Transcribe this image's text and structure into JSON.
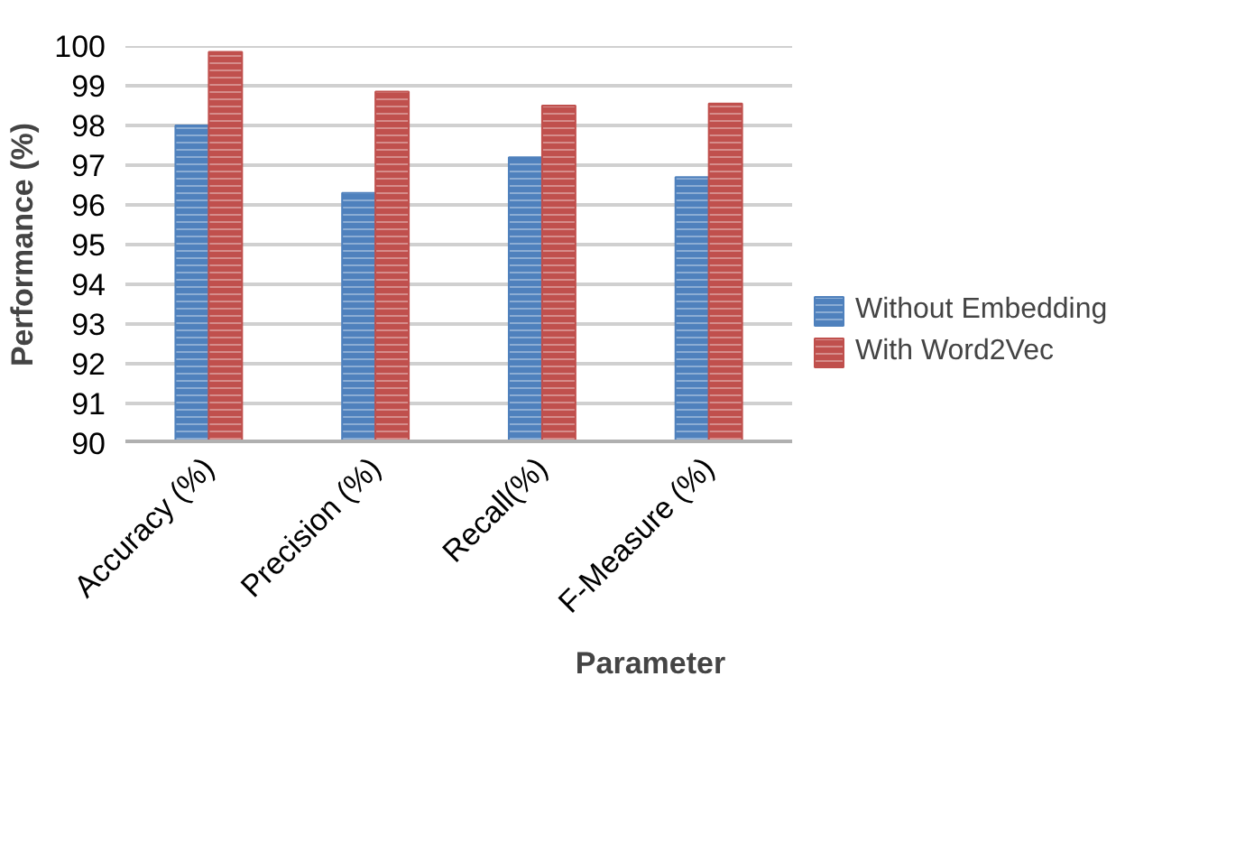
{
  "chart_data": {
    "type": "bar",
    "xlabel": "Parameter",
    "ylabel": "Performance (%)",
    "categories": [
      "Accuracy (%)",
      "Precision (%)",
      "Recall(%)",
      "F-Measure (%)"
    ],
    "series": [
      {
        "name": "Without Embedding",
        "color": "#4f81bd",
        "values": [
          98.0,
          96.3,
          97.2,
          96.7
        ]
      },
      {
        "name": "With Word2Vec",
        "color": "#c0504d",
        "values": [
          99.85,
          98.85,
          98.5,
          98.55
        ]
      }
    ],
    "ylim": [
      90,
      100
    ],
    "yticks": [
      90,
      91,
      92,
      93,
      94,
      95,
      96,
      97,
      98,
      99,
      100
    ],
    "grid": "y",
    "legend": "right"
  }
}
